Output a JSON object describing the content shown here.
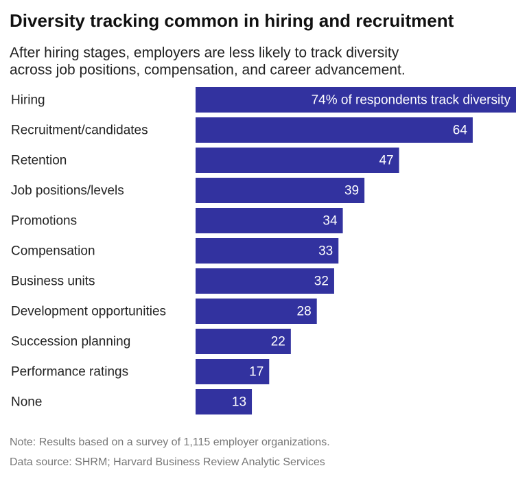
{
  "chart_data": {
    "type": "bar",
    "orientation": "horizontal",
    "title": "Diversity tracking common in hiring and recruitment",
    "subtitle": [
      "After hiring stages, employers are less likely to track diversity",
      "across job positions, compensation, and career advancement."
    ],
    "categories": [
      "Hiring",
      "Recruitment/candidates",
      "Retention",
      "Job positions/levels",
      "Promotions",
      "Compensation",
      "Business units",
      "Development opportunities",
      "Succession planning",
      "Performance ratings",
      "None"
    ],
    "values": [
      74,
      64,
      47,
      39,
      34,
      33,
      32,
      28,
      22,
      17,
      13
    ],
    "value_labels": [
      "74% of respondents track diversity",
      null,
      null,
      null,
      null,
      null,
      null,
      null,
      null,
      null,
      null
    ],
    "color": "#32329f",
    "note": "Note: Results based on a survey of 1,115 employer organizations.",
    "source": "Data source: SHRM; Harvard Business Review Analytic Services"
  }
}
